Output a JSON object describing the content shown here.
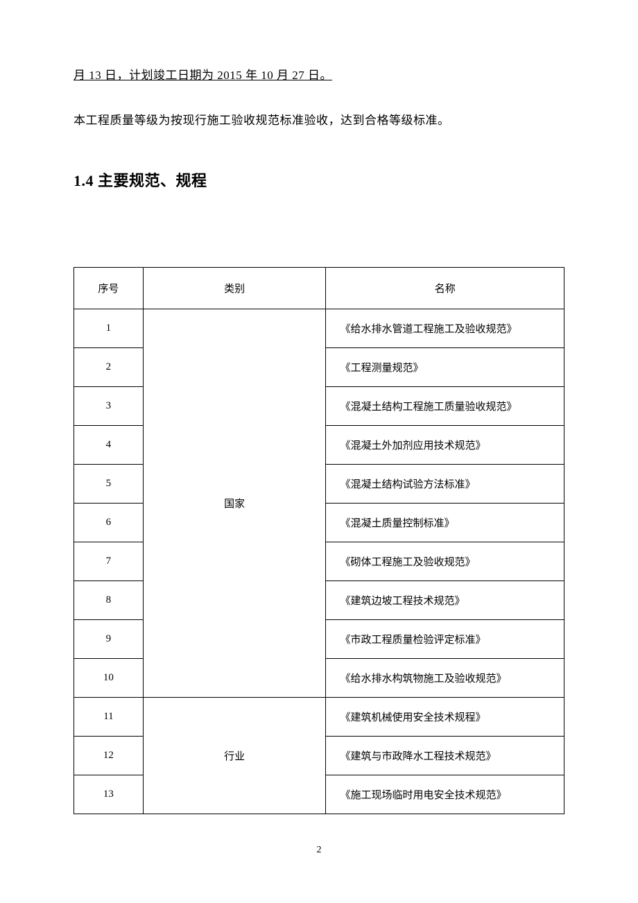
{
  "paragraphs": {
    "underlined": "月 13 日，计划竣工日期为 2015 年 10 月 27 日。",
    "normal": "本工程质量等级为按现行施工验收规范标准验收，达到合格等级标准。"
  },
  "heading": "1.4 主要规范、规程",
  "table": {
    "headers": {
      "seq": "序号",
      "category": "类别",
      "name": "名称"
    },
    "groups": [
      {
        "category": "国家",
        "rows": [
          {
            "seq": "1",
            "name": "《给水排水管道工程施工及验收规范》"
          },
          {
            "seq": "2",
            "name": "《工程测量规范》"
          },
          {
            "seq": "3",
            "name": "《混凝土结构工程施工质量验收规范》"
          },
          {
            "seq": "4",
            "name": "《混凝土外加剂应用技术规范》"
          },
          {
            "seq": "5",
            "name": "《混凝土结构试验方法标准》"
          },
          {
            "seq": "6",
            "name": "《混凝土质量控制标准》"
          },
          {
            "seq": "7",
            "name": "《砌体工程施工及验收规范》"
          },
          {
            "seq": "8",
            "name": "《建筑边坡工程技术规范》"
          },
          {
            "seq": "9",
            "name": "《市政工程质量检验评定标准》"
          },
          {
            "seq": "10",
            "name": "《给水排水构筑物施工及验收规范》"
          }
        ]
      },
      {
        "category": "行业",
        "rows": [
          {
            "seq": "11",
            "name": "《建筑机械使用安全技术规程》"
          },
          {
            "seq": "12",
            "name": "《建筑与市政降水工程技术规范》"
          },
          {
            "seq": "13",
            "name": "《施工现场临时用电安全技术规范》"
          }
        ]
      }
    ]
  },
  "pageNumber": "2"
}
